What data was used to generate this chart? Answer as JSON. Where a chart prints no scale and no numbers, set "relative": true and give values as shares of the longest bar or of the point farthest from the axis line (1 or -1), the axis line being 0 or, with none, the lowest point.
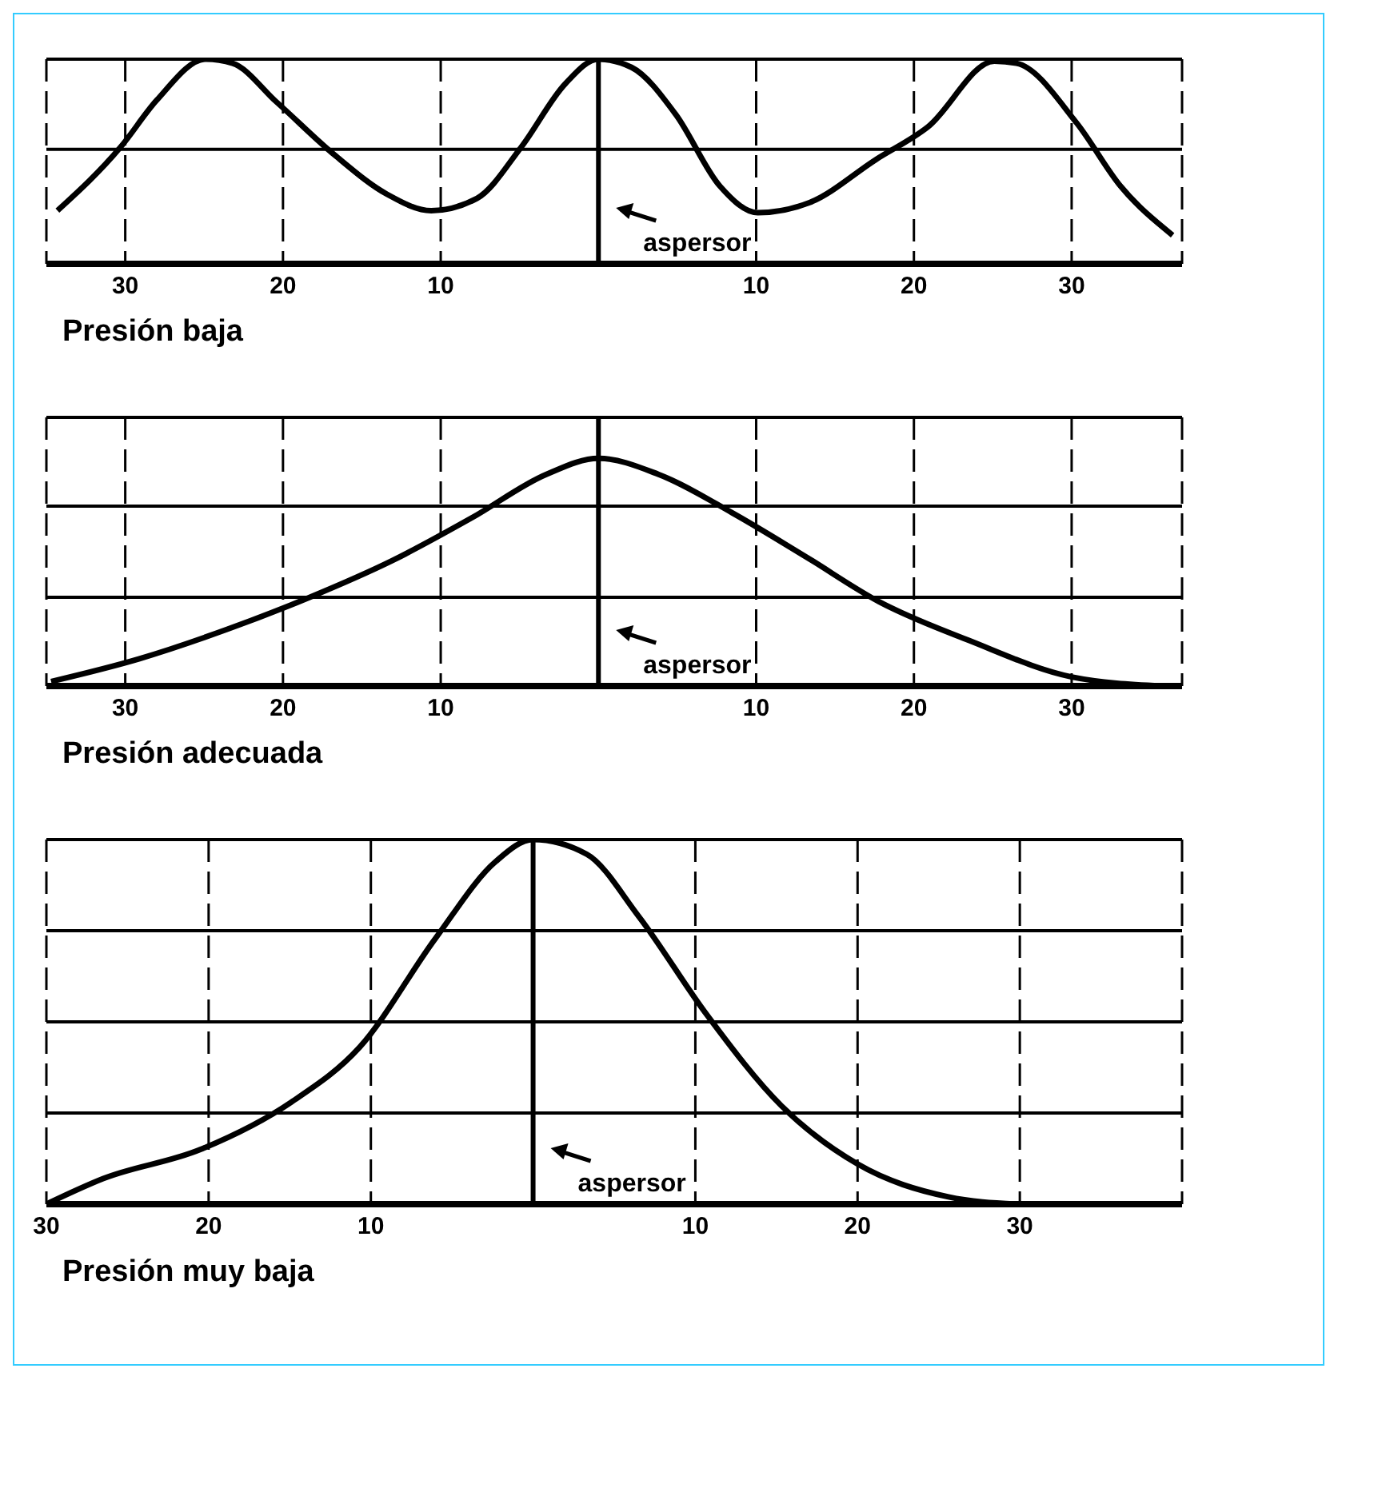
{
  "chart_data": [
    {
      "type": "line",
      "title": "Presión baja",
      "relative": true,
      "color": "#000000",
      "grid": "x",
      "xlim": [
        -35,
        37
      ],
      "xticks": [
        {
          "value": -30,
          "label": "30"
        },
        {
          "value": -20,
          "label": "20"
        },
        {
          "value": -10,
          "label": "10"
        },
        10,
        20,
        30
      ],
      "ref_lines": [
        {
          "axis": "x",
          "value": 0,
          "label": "aspersor"
        },
        {
          "axis": "y",
          "value": 0.56
        },
        {
          "axis": "y",
          "value": 1.0
        }
      ],
      "x": [
        -34.3,
        -30.3,
        -28,
        -24.9,
        -23.2,
        -20.4,
        -16.7,
        -13.4,
        -10.6,
        -7.7,
        -4.9,
        -2.1,
        0,
        2.1,
        4.9,
        7.7,
        10.1,
        13.4,
        17.6,
        20.9,
        25.1,
        26.5,
        30.3,
        33.1,
        36.4
      ],
      "values": [
        0.26,
        0.57,
        0.8,
        1.0,
        0.98,
        0.79,
        0.53,
        0.34,
        0.26,
        0.32,
        0.57,
        0.88,
        1.0,
        0.96,
        0.73,
        0.38,
        0.25,
        0.3,
        0.51,
        0.67,
        0.99,
        0.98,
        0.69,
        0.38,
        0.14
      ]
    },
    {
      "type": "line",
      "title": "Presión adecuada",
      "relative": true,
      "color": "#000000",
      "grid": "x",
      "xlim": [
        -35,
        37
      ],
      "xticks": [
        {
          "value": -30,
          "label": "30"
        },
        {
          "value": -20,
          "label": "20"
        },
        {
          "value": -10,
          "label": "10"
        },
        10,
        20,
        30
      ],
      "ref_lines": [
        {
          "axis": "x",
          "value": 0,
          "label": "aspersor"
        },
        {
          "axis": "y",
          "value": 0.39
        },
        {
          "axis": "y",
          "value": 0.79
        },
        {
          "axis": "y",
          "value": 1.18
        }
      ],
      "x": [
        -34.7,
        -29.1,
        -23.5,
        -18.3,
        -13.1,
        -8,
        -3.3,
        0,
        3.8,
        8.5,
        13.1,
        17.8,
        23.5,
        30,
        35.7
      ],
      "values": [
        0.02,
        0.12,
        0.25,
        0.39,
        0.55,
        0.74,
        0.93,
        1.0,
        0.93,
        0.76,
        0.57,
        0.37,
        0.2,
        0.04,
        0
      ]
    },
    {
      "type": "line",
      "title": "Presión muy baja",
      "relative": true,
      "color": "#000000",
      "grid": "x",
      "xlim": [
        -30,
        40
      ],
      "xticks": [
        {
          "value": -30,
          "label": "30"
        },
        {
          "value": -20,
          "label": "20"
        },
        {
          "value": -10,
          "label": "10"
        },
        10,
        20,
        30
      ],
      "ref_lines": [
        {
          "axis": "x",
          "value": 0,
          "label": "aspersor"
        },
        {
          "axis": "y",
          "value": 0.25
        },
        {
          "axis": "y",
          "value": 0.5
        },
        {
          "axis": "y",
          "value": 0.75
        },
        {
          "axis": "y",
          "value": 1.0
        }
      ],
      "x": [
        -30,
        -26.5,
        -20.5,
        -14.9,
        -10.7,
        -6,
        -2.3,
        0,
        3.3,
        6.5,
        10.7,
        15.3,
        20,
        25.6,
        29.8
      ],
      "values": [
        0,
        0.07,
        0.15,
        0.28,
        0.43,
        0.73,
        0.94,
        1.0,
        0.96,
        0.79,
        0.52,
        0.27,
        0.11,
        0.02,
        0
      ]
    }
  ]
}
